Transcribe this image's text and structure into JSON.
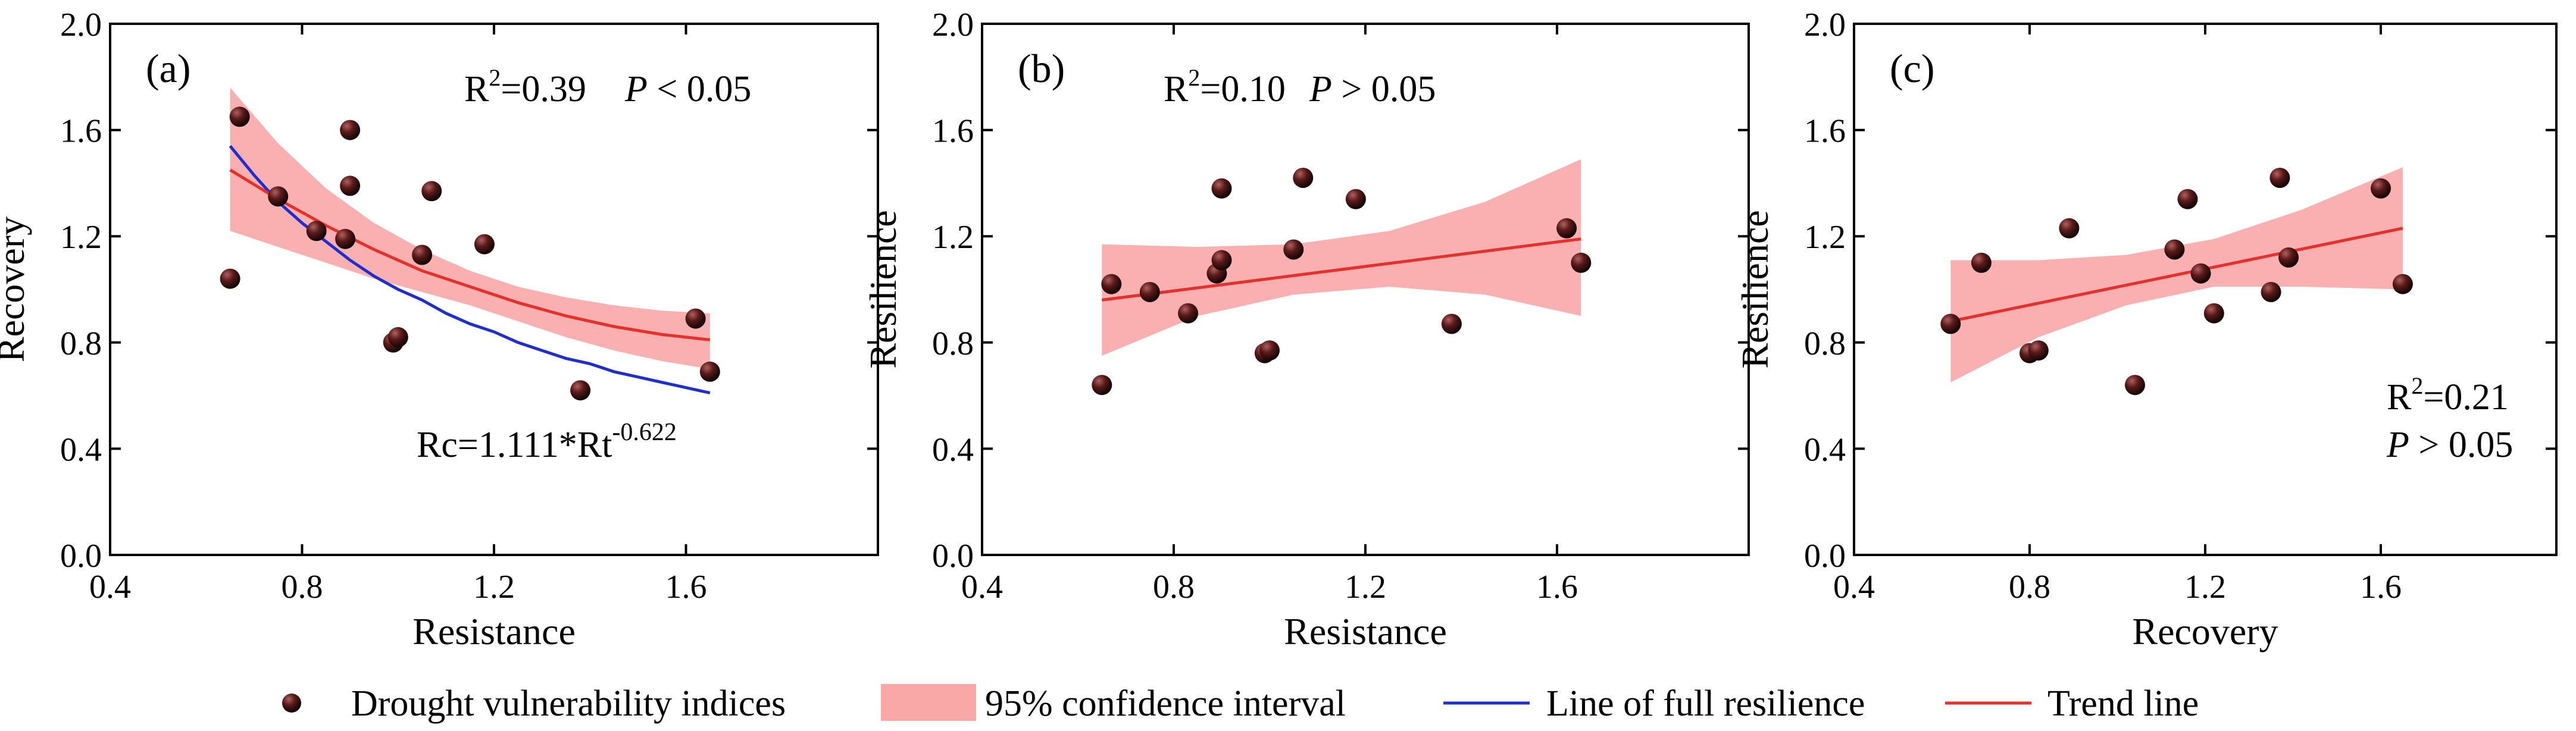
{
  "chart_data": [
    {
      "type": "scatter",
      "panel_label": "(a)",
      "xlabel": "Resistance",
      "ylabel": "Recovery",
      "xlim": [
        0.4,
        2.0
      ],
      "ylim": [
        0.0,
        2.0
      ],
      "xticks": [
        0.4,
        0.8,
        1.2,
        1.6
      ],
      "yticks": [
        0.0,
        0.4,
        0.8,
        1.2,
        1.6,
        2.0
      ],
      "xtick_labels": [
        "0.4",
        "0.8",
        "1.2",
        "1.6"
      ],
      "ytick_labels": [
        "0.0",
        "0.4",
        "0.8",
        "1.2",
        "1.6",
        "2.0"
      ],
      "points": {
        "x": [
          0.65,
          0.67,
          0.75,
          0.83,
          0.89,
          0.9,
          0.9,
          0.99,
          1.0,
          1.05,
          1.07,
          1.18,
          1.38,
          1.62,
          1.65
        ],
        "y": [
          1.04,
          1.65,
          1.35,
          1.22,
          1.19,
          1.6,
          1.39,
          0.8,
          0.82,
          1.13,
          1.37,
          1.17,
          0.62,
          0.89,
          0.69
        ]
      },
      "trend_line": {
        "x": [
          0.65,
          0.75,
          0.85,
          0.95,
          1.05,
          1.15,
          1.25,
          1.35,
          1.45,
          1.55,
          1.65
        ],
        "y": [
          1.45,
          1.34,
          1.24,
          1.15,
          1.07,
          1.01,
          0.95,
          0.9,
          0.86,
          0.83,
          0.81
        ]
      },
      "ci_upper": {
        "x": [
          0.65,
          0.75,
          0.85,
          0.95,
          1.05,
          1.15,
          1.25,
          1.35,
          1.45,
          1.55,
          1.65
        ],
        "y": [
          1.76,
          1.55,
          1.38,
          1.25,
          1.15,
          1.07,
          1.01,
          0.97,
          0.94,
          0.92,
          0.91
        ]
      },
      "ci_lower": {
        "x": [
          0.65,
          0.75,
          0.85,
          0.95,
          1.05,
          1.15,
          1.25,
          1.35,
          1.45,
          1.55,
          1.65
        ],
        "y": [
          1.22,
          1.16,
          1.1,
          1.04,
          0.99,
          0.94,
          0.88,
          0.82,
          0.77,
          0.73,
          0.7
        ]
      },
      "full_resilience_line": {
        "x": [
          0.65,
          0.7,
          0.75,
          0.8,
          0.85,
          0.9,
          0.95,
          1.0,
          1.05,
          1.1,
          1.15,
          1.2,
          1.25,
          1.3,
          1.35,
          1.4,
          1.45,
          1.5,
          1.55,
          1.6,
          1.65
        ],
        "y": [
          1.54,
          1.43,
          1.33,
          1.25,
          1.18,
          1.11,
          1.05,
          1.0,
          0.96,
          0.91,
          0.87,
          0.84,
          0.8,
          0.77,
          0.74,
          0.72,
          0.69,
          0.67,
          0.65,
          0.63,
          0.61
        ]
      },
      "annotations": {
        "r2": "R²=0.39",
        "p_italic": "P",
        "p_rest": " < 0.05",
        "eq_base": "Rc=1.111*Rt",
        "eq_sup": "-0.622"
      }
    },
    {
      "type": "scatter",
      "panel_label": "(b)",
      "xlabel": "Resistance",
      "ylabel": "Resilience",
      "xlim": [
        0.4,
        2.0
      ],
      "ylim": [
        0.0,
        2.0
      ],
      "xticks": [
        0.4,
        0.8,
        1.2,
        1.6
      ],
      "yticks": [
        0.0,
        0.4,
        0.8,
        1.2,
        1.6,
        2.0
      ],
      "xtick_labels": [
        "0.4",
        "0.8",
        "1.2",
        "1.6"
      ],
      "ytick_labels": [
        "0.0",
        "0.4",
        "0.8",
        "1.2",
        "1.6",
        "2.0"
      ],
      "points": {
        "x": [
          0.65,
          0.67,
          0.75,
          0.83,
          0.89,
          0.9,
          0.9,
          0.99,
          1.0,
          1.05,
          1.07,
          1.18,
          1.38,
          1.62,
          1.65
        ],
        "y": [
          0.64,
          1.02,
          0.99,
          0.91,
          1.06,
          1.11,
          1.38,
          0.76,
          0.77,
          1.15,
          1.42,
          1.34,
          0.87,
          1.23,
          1.1
        ]
      },
      "trend_line": {
        "x": [
          0.65,
          1.65
        ],
        "y": [
          0.96,
          1.19
        ]
      },
      "ci_upper": {
        "x": [
          0.65,
          0.85,
          1.05,
          1.25,
          1.45,
          1.65
        ],
        "y": [
          1.17,
          1.16,
          1.17,
          1.22,
          1.33,
          1.49
        ]
      },
      "ci_lower": {
        "x": [
          0.65,
          0.85,
          1.05,
          1.25,
          1.45,
          1.65
        ],
        "y": [
          0.75,
          0.9,
          0.98,
          1.01,
          0.98,
          0.9
        ]
      },
      "annotations": {
        "r2": "R²=0.10",
        "p_italic": "P",
        "p_rest": " > 0.05"
      }
    },
    {
      "type": "scatter",
      "panel_label": "(c)",
      "xlabel": "Recovery",
      "ylabel": "Resilience",
      "xlim": [
        0.4,
        2.0
      ],
      "ylim": [
        0.0,
        2.0
      ],
      "xticks": [
        0.4,
        0.8,
        1.2,
        1.6
      ],
      "yticks": [
        0.0,
        0.4,
        0.8,
        1.2,
        1.6,
        2.0
      ],
      "xtick_labels": [
        "0.4",
        "0.8",
        "1.2",
        "1.6"
      ],
      "ytick_labels": [
        "0.0",
        "0.4",
        "0.8",
        "1.2",
        "1.6",
        "2.0"
      ],
      "points": {
        "x": [
          0.62,
          0.69,
          0.8,
          0.82,
          0.89,
          1.04,
          1.13,
          1.16,
          1.19,
          1.22,
          1.35,
          1.37,
          1.39,
          1.6,
          1.65
        ],
        "y": [
          0.87,
          1.1,
          0.76,
          0.77,
          1.23,
          0.64,
          1.15,
          1.34,
          1.06,
          0.91,
          0.99,
          1.42,
          1.12,
          1.38,
          1.02
        ]
      },
      "trend_line": {
        "x": [
          0.62,
          1.65
        ],
        "y": [
          0.88,
          1.23
        ]
      },
      "ci_upper": {
        "x": [
          0.62,
          0.82,
          1.02,
          1.22,
          1.42,
          1.65
        ],
        "y": [
          1.11,
          1.11,
          1.13,
          1.19,
          1.3,
          1.46
        ]
      },
      "ci_lower": {
        "x": [
          0.62,
          0.82,
          1.02,
          1.22,
          1.42,
          1.65
        ],
        "y": [
          0.65,
          0.82,
          0.94,
          1.01,
          1.01,
          1.0
        ]
      },
      "annotations": {
        "r2": "R²=0.21",
        "p_italic": "P",
        "p_rest": " > 0.05"
      }
    }
  ],
  "legend": {
    "items": [
      {
        "label": "Drought vulnerability indices",
        "kind": "marker"
      },
      {
        "label": "95% confidence interval",
        "kind": "band"
      },
      {
        "label": "Line of full resilience",
        "kind": "blue-line"
      },
      {
        "label": "Trend line",
        "kind": "red-line"
      }
    ]
  },
  "colors": {
    "band": "#f9a7a7",
    "trend": "#e8302a",
    "full_resilience": "#1f2fcf",
    "marker_fill": "#2a0a0a",
    "marker_highlight": "#8a3a3a",
    "axis": "#000000"
  }
}
